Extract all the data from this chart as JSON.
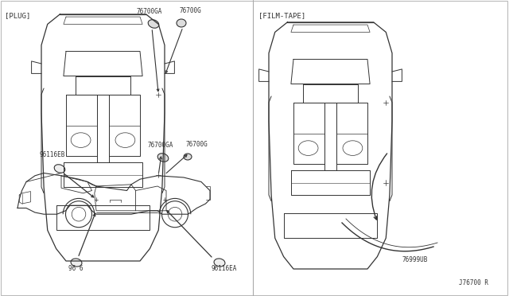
{
  "bg_color": "#ffffff",
  "line_color": "#333333",
  "text_color": "#333333",
  "border_color": "#aaaaaa",
  "sections": {
    "left_label": "[PLUG]",
    "right_label": "[FILM-TAPE]"
  },
  "part_numbers": {
    "top_plug_1": "76700GA",
    "top_plug_2": "76700G",
    "mid_plug_1": "76700GA",
    "mid_plug_2": "76700G",
    "side_eb": "96116EB",
    "side_ea": "96116EA",
    "side_96": "96 6",
    "film_tape": "76999UB",
    "doc_num": "J76700 R"
  }
}
